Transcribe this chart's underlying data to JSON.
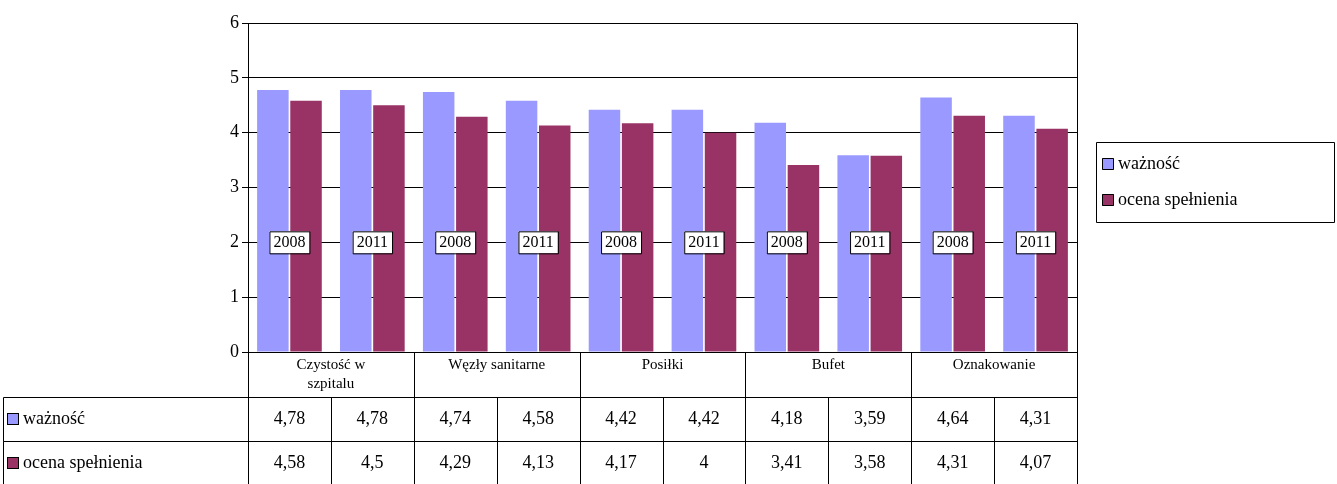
{
  "chart_data": {
    "type": "bar",
    "categories": [
      "2008",
      "2011",
      "2008",
      "2011",
      "2008",
      "2011",
      "2008",
      "2011",
      "2008",
      "2011"
    ],
    "annotations": [
      "Czystość w szpitalu",
      "Węzły sanitarne",
      "Posiłki",
      "Bufet",
      "Oznakowanie"
    ],
    "series": [
      {
        "name": "ważność",
        "color": "#9999ff",
        "values": [
          4.78,
          4.78,
          4.74,
          4.58,
          4.42,
          4.42,
          4.18,
          3.59,
          4.64,
          4.31
        ],
        "value_labels": [
          "4,78",
          "4,78",
          "4,74",
          "4,58",
          "4,42",
          "4,42",
          "4,18",
          "3,59",
          "4,64",
          "4,31"
        ]
      },
      {
        "name": "ocena spełnienia",
        "color": "#993366",
        "values": [
          4.58,
          4.5,
          4.29,
          4.13,
          4.17,
          4,
          3.41,
          3.58,
          4.31,
          4.07
        ],
        "value_labels": [
          "4,58",
          "4,5",
          "4,29",
          "4,13",
          "4,17",
          "4",
          "3,41",
          "3,58",
          "4,31",
          "4,07"
        ]
      }
    ],
    "ylim": [
      0,
      6
    ],
    "yticks": [
      0,
      1,
      2,
      3,
      4,
      5,
      6
    ],
    "grid": "y",
    "legend": "right"
  }
}
